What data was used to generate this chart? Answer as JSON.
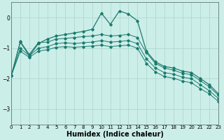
{
  "xlabel": "Humidex (Indice chaleur)",
  "ylabel": "",
  "background_color": "#cceee8",
  "grid_color": "#aad4cc",
  "line_color": "#1a7a6e",
  "xlim": [
    0,
    23
  ],
  "ylim": [
    -3.5,
    0.5
  ],
  "yticks": [
    0,
    -1,
    -2,
    -3
  ],
  "xticks": [
    0,
    1,
    2,
    3,
    4,
    5,
    6,
    7,
    8,
    9,
    10,
    11,
    12,
    13,
    14,
    15,
    16,
    17,
    18,
    19,
    20,
    21,
    22,
    23
  ],
  "line1_x": [
    0,
    1,
    2,
    3,
    4,
    5,
    6,
    7,
    8,
    9,
    10,
    11,
    12,
    13,
    14,
    15,
    16,
    17,
    18,
    19,
    20,
    21,
    22,
    23
  ],
  "line1_y": [
    -1.9,
    -0.8,
    -1.25,
    -0.85,
    -0.7,
    -0.6,
    -0.55,
    -0.5,
    -0.45,
    -0.38,
    0.15,
    -0.22,
    0.22,
    0.12,
    -0.1,
    -1.1,
    -1.45,
    -1.6,
    -1.65,
    -1.75,
    -1.8,
    -2.0,
    -2.2,
    -2.5
  ],
  "line2_x": [
    0,
    1,
    2,
    3,
    4,
    5,
    6,
    7,
    8,
    9,
    10,
    11,
    12,
    13,
    14,
    15,
    16,
    17,
    18,
    19,
    20,
    21,
    22,
    23
  ],
  "line2_y": [
    -1.9,
    -0.78,
    -1.2,
    -0.82,
    -0.8,
    -0.7,
    -0.68,
    -0.65,
    -0.62,
    -0.6,
    -0.55,
    -0.6,
    -0.58,
    -0.55,
    -0.65,
    -1.15,
    -1.5,
    -1.65,
    -1.72,
    -1.82,
    -1.87,
    -2.07,
    -2.27,
    -2.55
  ],
  "line3_x": [
    0,
    1,
    2,
    3,
    4,
    5,
    6,
    7,
    8,
    9,
    10,
    11,
    12,
    13,
    14,
    15,
    16,
    17,
    18,
    19,
    20,
    21,
    22,
    23
  ],
  "line3_y": [
    -1.9,
    -1.0,
    -1.25,
    -1.0,
    -0.95,
    -0.85,
    -0.82,
    -0.85,
    -0.82,
    -0.8,
    -0.75,
    -0.8,
    -0.78,
    -0.75,
    -0.85,
    -1.35,
    -1.65,
    -1.8,
    -1.85,
    -1.95,
    -2.0,
    -2.2,
    -2.4,
    -2.65
  ],
  "line4_x": [
    0,
    1,
    2,
    3,
    4,
    5,
    6,
    7,
    8,
    9,
    10,
    11,
    12,
    13,
    14,
    15,
    16,
    17,
    18,
    19,
    20,
    21,
    22,
    23
  ],
  "line4_y": [
    -1.9,
    -1.1,
    -1.3,
    -1.1,
    -1.05,
    -0.97,
    -0.95,
    -0.97,
    -0.95,
    -0.93,
    -0.9,
    -0.95,
    -0.92,
    -0.9,
    -1.0,
    -1.5,
    -1.78,
    -1.93,
    -1.98,
    -2.08,
    -2.13,
    -2.33,
    -2.5,
    -2.75
  ]
}
